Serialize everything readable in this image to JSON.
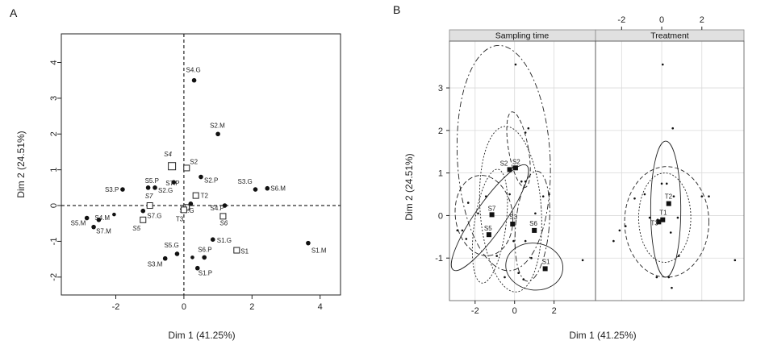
{
  "chart_data": [
    {
      "panel": "A",
      "type": "scatter",
      "xlabel": "Dim 1 (41.25%)",
      "ylabel": "Dim 2 (24.51%)",
      "xlim": [
        -3.6,
        4.6
      ],
      "ylim": [
        -2.5,
        4.8
      ],
      "xticks": [
        -2,
        0,
        2,
        4
      ],
      "yticks": [
        -2,
        -1,
        0,
        1,
        2,
        3,
        4
      ],
      "xtick_labels": [
        "-2",
        "0",
        "2",
        "4"
      ],
      "ytick_labels": [
        "-2",
        "-1",
        "0",
        "1",
        "2",
        "3",
        "4"
      ],
      "reference_lines": "dashed at x=0 and y=0",
      "individuals": [
        {
          "label": "S4.G",
          "x": 0.3,
          "y": 3.5
        },
        {
          "label": "S2.M",
          "x": 1.0,
          "y": 2.0
        },
        {
          "label": "S2.P",
          "x": 0.5,
          "y": 0.8
        },
        {
          "label": "S3.G",
          "x": 2.1,
          "y": 0.45
        },
        {
          "label": "S6.M",
          "x": 2.45,
          "y": 0.48
        },
        {
          "label": "S3.P",
          "x": -1.8,
          "y": 0.45
        },
        {
          "label": "S5.P",
          "x": -1.05,
          "y": 0.5
        },
        {
          "label": "S2.G",
          "x": -0.85,
          "y": 0.5
        },
        {
          "label": "S7.P",
          "x": -0.3,
          "y": 0.65
        },
        {
          "label": "S7.G",
          "x": -1.2,
          "y": -0.15
        },
        {
          "label": "S6.G",
          "x": 0.2,
          "y": 0.05
        },
        {
          "label": "S5.M",
          "x": -2.85,
          "y": -0.35
        },
        {
          "label": "S4.M",
          "x": -2.5,
          "y": -0.4
        },
        {
          "label": "S7.M",
          "x": -2.65,
          "y": -0.6
        },
        {
          "label": "S4.P",
          "x": 1.2,
          "y": 0.0
        },
        {
          "label": "S1.G",
          "x": 0.85,
          "y": -0.95
        },
        {
          "label": "S1.M",
          "x": 3.65,
          "y": -1.05
        },
        {
          "label": "S5.G",
          "x": -0.2,
          "y": -1.35
        },
        {
          "label": "S3.M",
          "x": -0.55,
          "y": -1.48
        },
        {
          "label": "S6.P",
          "x": 0.6,
          "y": -1.45
        },
        {
          "label": "S1.P",
          "x": 0.4,
          "y": -1.75
        }
      ],
      "extra_points": [
        {
          "x": -2.05,
          "y": -0.25
        },
        {
          "x": 0.25,
          "y": -1.45
        }
      ],
      "supplementary_categories": [
        {
          "label": "S4",
          "x": -0.35,
          "y": 1.1
        },
        {
          "label": "S2",
          "x": 0.08,
          "y": 1.05
        },
        {
          "label": "T2",
          "x": 0.35,
          "y": 0.28
        },
        {
          "label": "S7",
          "x": -1.0,
          "y": 0.0
        },
        {
          "label": "T1",
          "x": 0.08,
          "y": -0.05
        },
        {
          "label": "T3",
          "x": 0.0,
          "y": -0.12
        },
        {
          "label": "S5",
          "x": -1.2,
          "y": -0.4
        },
        {
          "label": "S6",
          "x": 1.15,
          "y": -0.3
        },
        {
          "label": "S1",
          "x": 1.55,
          "y": -1.25
        }
      ]
    },
    {
      "panel": "B",
      "type": "scatter",
      "strips": [
        "Sampling time",
        "Treatment"
      ],
      "xlabel": "Dim 1 (41.25%)",
      "ylabel": "Dim 2 (24.51%)",
      "xlim": [
        -3.3,
        4.1
      ],
      "ylim": [
        -2.0,
        4.1
      ],
      "xticks": [
        -2,
        0,
        2
      ],
      "yticks": [
        -1,
        0,
        1,
        2,
        3
      ],
      "xtick_labels": [
        "-2",
        "0",
        "2"
      ],
      "ytick_labels": [
        "-1",
        "0",
        "1",
        "2",
        "3"
      ],
      "individuals": [
        {
          "x": 0.05,
          "y": 3.55
        },
        {
          "x": 0.7,
          "y": 2.05
        },
        {
          "x": 0.55,
          "y": 1.95
        },
        {
          "x": -0.05,
          "y": 1.12
        },
        {
          "x": 0.35,
          "y": 0.8
        },
        {
          "x": -0.25,
          "y": 0.5
        },
        {
          "x": 0.55,
          "y": 0.8
        },
        {
          "x": 1.45,
          "y": 0.45
        },
        {
          "x": 1.75,
          "y": 0.5
        },
        {
          "x": -1.45,
          "y": 0.45
        },
        {
          "x": -2.35,
          "y": 0.3
        },
        {
          "x": -1.85,
          "y": 0.05
        },
        {
          "x": -2.65,
          "y": -0.35
        },
        {
          "x": -2.9,
          "y": -0.35
        },
        {
          "x": -2.45,
          "y": -0.55
        },
        {
          "x": -0.05,
          "y": -0.6
        },
        {
          "x": 0.55,
          "y": -0.6
        },
        {
          "x": 0.2,
          "y": -1.35
        },
        {
          "x": -0.5,
          "y": -1.45
        },
        {
          "x": 0.85,
          "y": -1.0
        },
        {
          "x": 0.45,
          "y": -1.5
        },
        {
          "x": 3.45,
          "y": -1.05
        },
        {
          "x": -0.9,
          "y": -0.95
        },
        {
          "x": 1.05,
          "y": 0.05
        }
      ],
      "sampling_time_centroids": [
        {
          "label": "S2",
          "x": 0.05,
          "y": 1.12
        },
        {
          "label": "S2",
          "x": -0.25,
          "y": 1.08
        },
        {
          "label": "S7",
          "x": -1.15,
          "y": 0.02
        },
        {
          "label": "S5",
          "x": -1.3,
          "y": -0.45
        },
        {
          "label": "S3",
          "x": -0.1,
          "y": -0.2
        },
        {
          "label": "S6",
          "x": 1.0,
          "y": -0.35
        },
        {
          "label": "S1",
          "x": 1.55,
          "y": -1.25
        }
      ],
      "treatment_individuals": [
        {
          "x": 0.05,
          "y": 3.55
        },
        {
          "x": 0.55,
          "y": 2.05
        },
        {
          "x": -1.35,
          "y": 0.4
        },
        {
          "x": 0.0,
          "y": 0.75
        },
        {
          "x": 0.25,
          "y": 0.75
        },
        {
          "x": -0.85,
          "y": 0.5
        },
        {
          "x": 0.6,
          "y": 0.45
        },
        {
          "x": 2.0,
          "y": 0.45
        },
        {
          "x": 2.35,
          "y": 0.45
        },
        {
          "x": -2.1,
          "y": -0.35
        },
        {
          "x": -2.4,
          "y": -0.6
        },
        {
          "x": -1.8,
          "y": -0.25
        },
        {
          "x": 0.8,
          "y": -0.05
        },
        {
          "x": -0.6,
          "y": -0.05
        },
        {
          "x": -0.2,
          "y": -0.1
        },
        {
          "x": 0.45,
          "y": -0.4
        },
        {
          "x": 0.85,
          "y": -0.95
        },
        {
          "x": 3.65,
          "y": -1.05
        },
        {
          "x": -0.25,
          "y": -1.45
        },
        {
          "x": 0.35,
          "y": -1.45
        },
        {
          "x": 0.5,
          "y": -1.7
        }
      ],
      "treatment_centroids": [
        {
          "label": "T2",
          "x": 0.35,
          "y": 0.28
        },
        {
          "label": "T1",
          "x": 0.05,
          "y": -0.1
        },
        {
          "label": "T3",
          "x": -0.15,
          "y": -0.15
        }
      ]
    }
  ],
  "panel_letters": {
    "a": "A",
    "b": "B"
  },
  "strip_labels": {
    "sampling": "Sampling time",
    "treatment": "Treatment"
  },
  "axis_labels": {
    "a_x": "Dim 1 (41.25%)",
    "a_y": "Dim 2 (24.51%)",
    "b_x": "Dim 1 (41.25%)",
    "b_y": "Dim 2 (24.51%)"
  }
}
